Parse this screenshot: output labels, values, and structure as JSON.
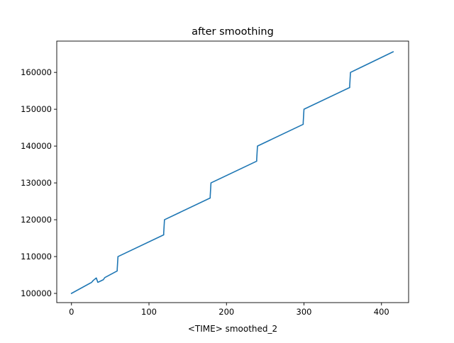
{
  "chart_data": {
    "type": "line",
    "title": "after smoothing",
    "xlabel": "<TIME> smoothed_2",
    "ylabel": "",
    "xlim": [
      -19,
      435
    ],
    "ylim": [
      97500,
      168500
    ],
    "xticks": [
      0,
      100,
      200,
      300,
      400
    ],
    "yticks": [
      100000,
      110000,
      120000,
      130000,
      140000,
      150000,
      160000
    ],
    "xtick_labels": [
      "0",
      "100",
      "200",
      "300",
      "400"
    ],
    "ytick_labels": [
      "100000",
      "110000",
      "120000",
      "130000",
      "140000",
      "150000",
      "160000"
    ],
    "grid": false,
    "legend": "none",
    "series": [
      {
        "color": "#1f77b4",
        "x": [
          0,
          26,
          28,
          32,
          34,
          36,
          41,
          43,
          59,
          59,
          60,
          119,
          119,
          120,
          179,
          179,
          180,
          239,
          239,
          240,
          299,
          299,
          300,
          359,
          359,
          360,
          415
        ],
        "y": [
          100000,
          103000,
          103500,
          104200,
          103000,
          103200,
          103700,
          104300,
          106100,
          106500,
          110000,
          115900,
          116400,
          120000,
          125900,
          126400,
          130000,
          135900,
          136400,
          140000,
          145900,
          146400,
          150000,
          155900,
          156400,
          160000,
          165600
        ]
      }
    ]
  }
}
